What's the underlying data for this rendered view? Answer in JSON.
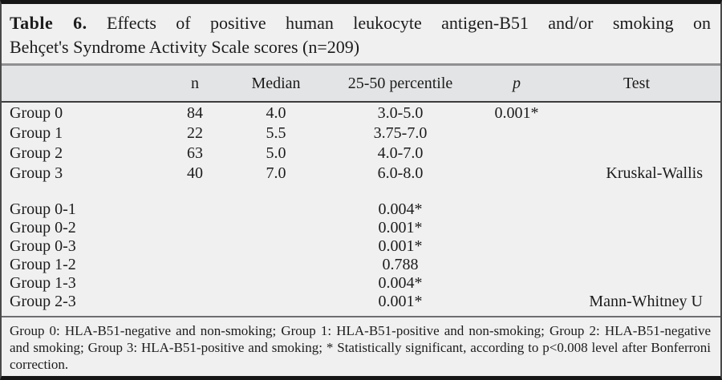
{
  "title": {
    "prefix": "Table 6.",
    "line1_rest": "Effects of positive human leukocyte antigen-B51 and/or smoking on",
    "line2": "Behçet's Syndrome Activity Scale scores (n=209)"
  },
  "header": {
    "group": "",
    "n": "n",
    "median": "Median",
    "percentile": "25-50 percentile",
    "p": "p",
    "test": "Test"
  },
  "groups": [
    {
      "label": "Group 0",
      "n": "84",
      "median": "4.0",
      "percentile": "3.0-5.0",
      "p": "0.001*",
      "test": ""
    },
    {
      "label": "Group 1",
      "n": "22",
      "median": "5.5",
      "percentile": "3.75-7.0",
      "p": "",
      "test": ""
    },
    {
      "label": "Group 2",
      "n": "63",
      "median": "5.0",
      "percentile": "4.0-7.0",
      "p": "",
      "test": ""
    },
    {
      "label": "Group 3",
      "n": "40",
      "median": "7.0",
      "percentile": "6.0-8.0",
      "p": "",
      "test": "Kruskal-Wallis"
    }
  ],
  "pairwise": [
    {
      "label": "Group 0-1",
      "value": "0.004*",
      "test": ""
    },
    {
      "label": "Group 0-2",
      "value": "0.001*",
      "test": ""
    },
    {
      "label": "Group 0-3",
      "value": "0.001*",
      "test": ""
    },
    {
      "label": "Group 1-2",
      "value": "0.788",
      "test": ""
    },
    {
      "label": "Group 1-3",
      "value": "0.004*",
      "test": ""
    },
    {
      "label": "Group 2-3",
      "value": "0.001*",
      "test": "Mann-Whitney U"
    }
  ],
  "footnote": "Group 0: HLA-B51-negative and non-smoking; Group 1: HLA-B51-positive and non-smoking; Group 2: HLA-B51-negative and smoking; Group 3: HLA-B51-positive and smoking; * Statistically significant, according to p<0.008 level after Bonferroni correction.",
  "colors": {
    "table_bg": "#f0f0f1",
    "header_bg": "#e3e4e5",
    "border_dark": "#161616",
    "rule_gray": "#909093",
    "text": "#1c1c1c"
  }
}
